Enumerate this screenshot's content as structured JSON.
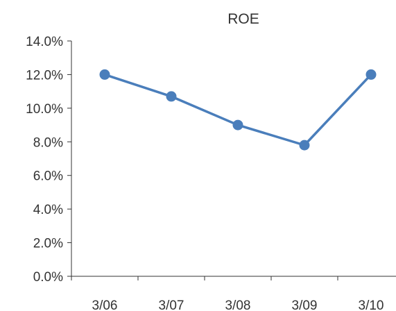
{
  "chart_data": {
    "type": "line",
    "title": "ROE",
    "categories": [
      "3/06",
      "3/07",
      "3/08",
      "3/09",
      "3/10"
    ],
    "series": [
      {
        "values": [
          12.0,
          10.7,
          9.0,
          7.8,
          12.0
        ]
      }
    ],
    "y_ticks": [
      "0.0%",
      "2.0%",
      "4.0%",
      "6.0%",
      "8.0%",
      "10.0%",
      "12.0%",
      "14.0%"
    ],
    "ylim": [
      0,
      14
    ],
    "grid": false,
    "legend": "none",
    "colors": {
      "line": "#4a7ebb",
      "axis": "#333333"
    }
  }
}
